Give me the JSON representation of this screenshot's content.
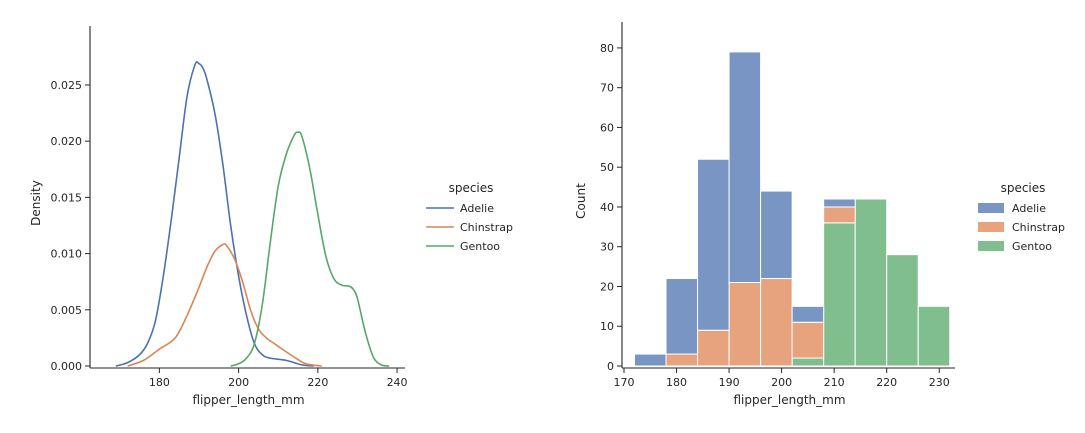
{
  "colors": {
    "adelie": "#4c72b0",
    "chinstrap": "#dd8452",
    "gentoo": "#55a868",
    "axis": "#262626"
  },
  "chart_data": [
    {
      "type": "line",
      "title": "",
      "xlabel": "flipper_length_mm",
      "ylabel": "Density",
      "xlim": [
        163,
        242
      ],
      "ylim": [
        0,
        0.029
      ],
      "xticks": [
        180,
        200,
        220,
        240
      ],
      "yticks": [
        0.0,
        0.005,
        0.01,
        0.015,
        0.02,
        0.025
      ],
      "ytick_labels": [
        "0.000",
        "0.005",
        "0.010",
        "0.015",
        "0.020",
        "0.025"
      ],
      "legend": {
        "title": "species",
        "position": "right",
        "entries": [
          "Adelie",
          "Chinstrap",
          "Gentoo"
        ]
      },
      "series": [
        {
          "name": "Adelie",
          "color_key": "adelie",
          "x": [
            169,
            172,
            175,
            177,
            179,
            181,
            183,
            185,
            187,
            189,
            190,
            191,
            192,
            194,
            196,
            198,
            200,
            202,
            204,
            206,
            208,
            212,
            216,
            219
          ],
          "y": [
            0.0,
            0.0003,
            0.001,
            0.002,
            0.004,
            0.008,
            0.013,
            0.0185,
            0.024,
            0.0268,
            0.0269,
            0.0265,
            0.0255,
            0.0225,
            0.018,
            0.0125,
            0.008,
            0.0045,
            0.002,
            0.001,
            0.0007,
            0.0005,
            0.0001,
            0.0
          ]
        },
        {
          "name": "Chinstrap",
          "color_key": "chinstrap",
          "x": [
            172,
            176,
            180,
            184,
            187,
            190,
            192,
            194,
            196,
            197,
            199,
            201,
            203,
            205,
            207,
            209,
            211,
            214,
            217,
            221
          ],
          "y": [
            0.0,
            0.0005,
            0.0015,
            0.0025,
            0.0045,
            0.007,
            0.0088,
            0.0102,
            0.0108,
            0.0107,
            0.0095,
            0.0075,
            0.005,
            0.0033,
            0.0025,
            0.002,
            0.0015,
            0.0008,
            0.0002,
            0.0
          ]
        },
        {
          "name": "Gentoo",
          "color_key": "gentoo",
          "x": [
            198,
            200,
            202,
            204,
            206,
            208,
            210,
            212,
            214,
            215,
            216,
            218,
            220,
            222,
            224,
            226,
            228,
            229,
            230,
            232,
            234,
            236,
            238
          ],
          "y": [
            0.0,
            0.0002,
            0.0007,
            0.002,
            0.0055,
            0.011,
            0.016,
            0.0188,
            0.0205,
            0.0208,
            0.0204,
            0.0175,
            0.0135,
            0.0098,
            0.0078,
            0.0072,
            0.0071,
            0.0068,
            0.006,
            0.003,
            0.0008,
            0.0001,
            0.0
          ]
        }
      ]
    },
    {
      "type": "bar",
      "stacked": true,
      "title": "",
      "xlabel": "flipper_length_mm",
      "ylabel": "Count",
      "xlim": [
        170,
        233
      ],
      "ylim": [
        0,
        83
      ],
      "xticks": [
        170,
        180,
        190,
        200,
        210,
        220,
        230
      ],
      "yticks": [
        0,
        10,
        20,
        30,
        40,
        50,
        60,
        70,
        80
      ],
      "legend": {
        "title": "species",
        "position": "right",
        "entries": [
          "Adelie",
          "Chinstrap",
          "Gentoo"
        ]
      },
      "bin_edges": [
        172,
        178,
        184,
        190,
        196,
        202,
        208,
        214,
        220,
        226,
        232
      ],
      "series": [
        {
          "name": "Adelie",
          "color_key": "adelie",
          "values": [
            3,
            19,
            43,
            58,
            22,
            4,
            2,
            0,
            0,
            0
          ]
        },
        {
          "name": "Chinstrap",
          "color_key": "chinstrap",
          "values": [
            0,
            3,
            9,
            21,
            22,
            9,
            4,
            0,
            0,
            0
          ]
        },
        {
          "name": "Gentoo",
          "color_key": "gentoo",
          "values": [
            0,
            0,
            0,
            0,
            0,
            2,
            36,
            42,
            28,
            15
          ]
        }
      ]
    }
  ]
}
